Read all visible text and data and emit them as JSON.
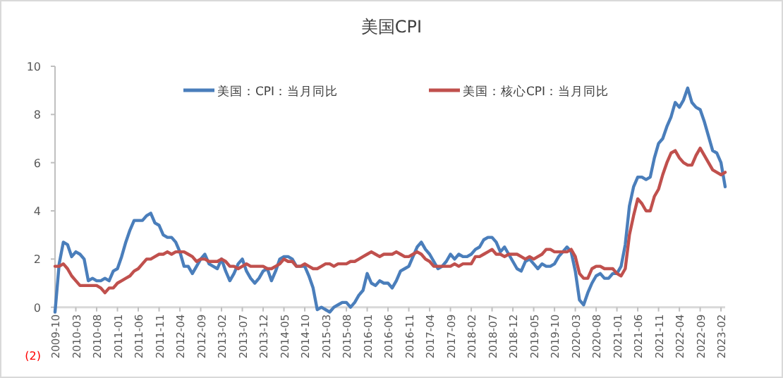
{
  "chart_data": {
    "type": "line",
    "title": "美国CPI",
    "x": [
      "2009-10",
      "2009-11",
      "2009-12",
      "2010-01",
      "2010-02",
      "2010-03",
      "2010-04",
      "2010-05",
      "2010-06",
      "2010-07",
      "2010-08",
      "2010-09",
      "2010-10",
      "2010-11",
      "2010-12",
      "2011-01",
      "2011-02",
      "2011-03",
      "2011-04",
      "2011-05",
      "2011-06",
      "2011-07",
      "2011-08",
      "2011-09",
      "2011-10",
      "2011-11",
      "2011-12",
      "2012-01",
      "2012-02",
      "2012-03",
      "2012-04",
      "2012-05",
      "2012-06",
      "2012-07",
      "2012-08",
      "2012-09",
      "2012-10",
      "2012-11",
      "2012-12",
      "2013-01",
      "2013-02",
      "2013-03",
      "2013-04",
      "2013-05",
      "2013-06",
      "2013-07",
      "2013-08",
      "2013-09",
      "2013-10",
      "2013-11",
      "2013-12",
      "2014-01",
      "2014-02",
      "2014-03",
      "2014-04",
      "2014-05",
      "2014-06",
      "2014-07",
      "2014-08",
      "2014-09",
      "2014-10",
      "2014-11",
      "2014-12",
      "2015-01",
      "2015-02",
      "2015-03",
      "2015-04",
      "2015-05",
      "2015-06",
      "2015-07",
      "2015-08",
      "2015-09",
      "2015-10",
      "2015-11",
      "2015-12",
      "2016-01",
      "2016-02",
      "2016-03",
      "2016-04",
      "2016-05",
      "2016-06",
      "2016-07",
      "2016-08",
      "2016-09",
      "2016-10",
      "2016-11",
      "2016-12",
      "2017-01",
      "2017-02",
      "2017-03",
      "2017-04",
      "2017-05",
      "2017-06",
      "2017-07",
      "2017-08",
      "2017-09",
      "2017-10",
      "2017-11",
      "2017-12",
      "2018-01",
      "2018-02",
      "2018-03",
      "2018-04",
      "2018-05",
      "2018-06",
      "2018-07",
      "2018-08",
      "2018-09",
      "2018-10",
      "2018-11",
      "2018-12",
      "2019-01",
      "2019-02",
      "2019-03",
      "2019-04",
      "2019-05",
      "2019-06",
      "2019-07",
      "2019-08",
      "2019-09",
      "2019-10",
      "2019-11",
      "2019-12",
      "2020-01",
      "2020-02",
      "2020-03",
      "2020-04",
      "2020-05",
      "2020-06",
      "2020-07",
      "2020-08",
      "2020-09",
      "2020-10",
      "2020-11",
      "2020-12",
      "2021-01",
      "2021-02",
      "2021-03",
      "2021-04",
      "2021-05",
      "2021-06",
      "2021-07",
      "2021-08",
      "2021-09",
      "2021-10",
      "2021-11",
      "2021-12",
      "2022-01",
      "2022-02",
      "2022-03",
      "2022-04",
      "2022-05",
      "2022-06",
      "2022-07",
      "2022-08",
      "2022-09",
      "2022-10",
      "2022-11",
      "2022-12",
      "2023-01",
      "2023-02",
      "2023-03"
    ],
    "series": [
      {
        "name": "美国：CPI：当月同比",
        "color": "#4a7ebb",
        "values": [
          -0.2,
          1.8,
          2.7,
          2.6,
          2.1,
          2.3,
          2.2,
          2.0,
          1.1,
          1.2,
          1.1,
          1.1,
          1.2,
          1.1,
          1.5,
          1.6,
          2.1,
          2.7,
          3.2,
          3.6,
          3.6,
          3.6,
          3.8,
          3.9,
          3.5,
          3.4,
          3.0,
          2.9,
          2.9,
          2.7,
          2.3,
          1.7,
          1.7,
          1.4,
          1.7,
          2.0,
          2.2,
          1.8,
          1.7,
          1.6,
          2.0,
          1.5,
          1.1,
          1.4,
          1.8,
          2.0,
          1.5,
          1.2,
          1.0,
          1.2,
          1.5,
          1.6,
          1.1,
          1.5,
          2.0,
          2.1,
          2.1,
          2.0,
          1.7,
          1.7,
          1.7,
          1.3,
          0.8,
          -0.1,
          0.0,
          -0.1,
          -0.2,
          0.0,
          0.1,
          0.2,
          0.2,
          0.0,
          0.2,
          0.5,
          0.7,
          1.4,
          1.0,
          0.9,
          1.1,
          1.0,
          1.0,
          0.8,
          1.1,
          1.5,
          1.6,
          1.7,
          2.1,
          2.5,
          2.7,
          2.4,
          2.2,
          1.9,
          1.6,
          1.7,
          1.9,
          2.2,
          2.0,
          2.2,
          2.1,
          2.1,
          2.2,
          2.4,
          2.5,
          2.8,
          2.9,
          2.9,
          2.7,
          2.3,
          2.5,
          2.2,
          1.9,
          1.6,
          1.5,
          1.9,
          2.0,
          1.8,
          1.6,
          1.8,
          1.7,
          1.7,
          1.8,
          2.1,
          2.3,
          2.5,
          2.3,
          1.5,
          0.3,
          0.1,
          0.6,
          1.0,
          1.3,
          1.4,
          1.2,
          1.2,
          1.4,
          1.4,
          1.7,
          2.6,
          4.2,
          5.0,
          5.4,
          5.4,
          5.3,
          5.4,
          6.2,
          6.8,
          7.0,
          7.5,
          7.9,
          8.5,
          8.3,
          8.6,
          9.1,
          8.5,
          8.3,
          8.2,
          7.7,
          7.1,
          6.5,
          6.4,
          6.0,
          5.0
        ]
      },
      {
        "name": "美国：核心CPI：当月同比",
        "color": "#c0504d",
        "values": [
          1.7,
          1.7,
          1.8,
          1.6,
          1.3,
          1.1,
          0.9,
          0.9,
          0.9,
          0.9,
          0.9,
          0.8,
          0.6,
          0.8,
          0.8,
          1.0,
          1.1,
          1.2,
          1.3,
          1.5,
          1.6,
          1.8,
          2.0,
          2.0,
          2.1,
          2.2,
          2.2,
          2.3,
          2.2,
          2.3,
          2.3,
          2.3,
          2.2,
          2.1,
          1.9,
          2.0,
          2.0,
          1.9,
          1.9,
          1.9,
          2.0,
          1.9,
          1.7,
          1.7,
          1.6,
          1.7,
          1.8,
          1.7,
          1.7,
          1.7,
          1.7,
          1.6,
          1.6,
          1.7,
          1.8,
          2.0,
          1.9,
          1.9,
          1.7,
          1.7,
          1.8,
          1.7,
          1.6,
          1.6,
          1.7,
          1.8,
          1.8,
          1.7,
          1.8,
          1.8,
          1.8,
          1.9,
          1.9,
          2.0,
          2.1,
          2.2,
          2.3,
          2.2,
          2.1,
          2.2,
          2.2,
          2.2,
          2.3,
          2.2,
          2.1,
          2.1,
          2.2,
          2.3,
          2.2,
          2.0,
          1.9,
          1.7,
          1.7,
          1.7,
          1.7,
          1.7,
          1.8,
          1.7,
          1.8,
          1.8,
          1.8,
          2.1,
          2.1,
          2.2,
          2.3,
          2.4,
          2.2,
          2.2,
          2.1,
          2.2,
          2.2,
          2.2,
          2.1,
          2.0,
          2.1,
          2.0,
          2.1,
          2.2,
          2.4,
          2.4,
          2.3,
          2.3,
          2.3,
          2.3,
          2.4,
          2.1,
          1.4,
          1.2,
          1.2,
          1.6,
          1.7,
          1.7,
          1.6,
          1.6,
          1.6,
          1.4,
          1.3,
          1.6,
          3.0,
          3.8,
          4.5,
          4.3,
          4.0,
          4.0,
          4.6,
          4.9,
          5.5,
          6.0,
          6.4,
          6.5,
          6.2,
          6.0,
          5.9,
          5.9,
          6.3,
          6.6,
          6.3,
          6.0,
          5.7,
          5.6,
          5.5,
          5.6
        ]
      }
    ],
    "xlim": [
      "2009-10",
      "2023-03"
    ],
    "xticks": [
      "2009-10",
      "2010-03",
      "2010-08",
      "2011-01",
      "2011-06",
      "2011-11",
      "2012-04",
      "2012-09",
      "2013-02",
      "2013-07",
      "2013-12",
      "2014-05",
      "2014-10",
      "2015-03",
      "2015-08",
      "2016-01",
      "2016-06",
      "2016-11",
      "2017-04",
      "2017-09",
      "2018-02",
      "2018-07",
      "2018-12",
      "2019-05",
      "2019-10",
      "2020-03",
      "2020-08",
      "2021-01",
      "2021-06",
      "2021-11",
      "2022-04",
      "2022-09",
      "2023-02"
    ],
    "ylim": [
      -2,
      10
    ],
    "yticks": [
      {
        "value": -2,
        "label": "(2)"
      },
      0,
      2,
      4,
      6,
      8,
      10
    ],
    "legend": "top",
    "grid": false,
    "marker": "none",
    "line_style": "solid"
  }
}
